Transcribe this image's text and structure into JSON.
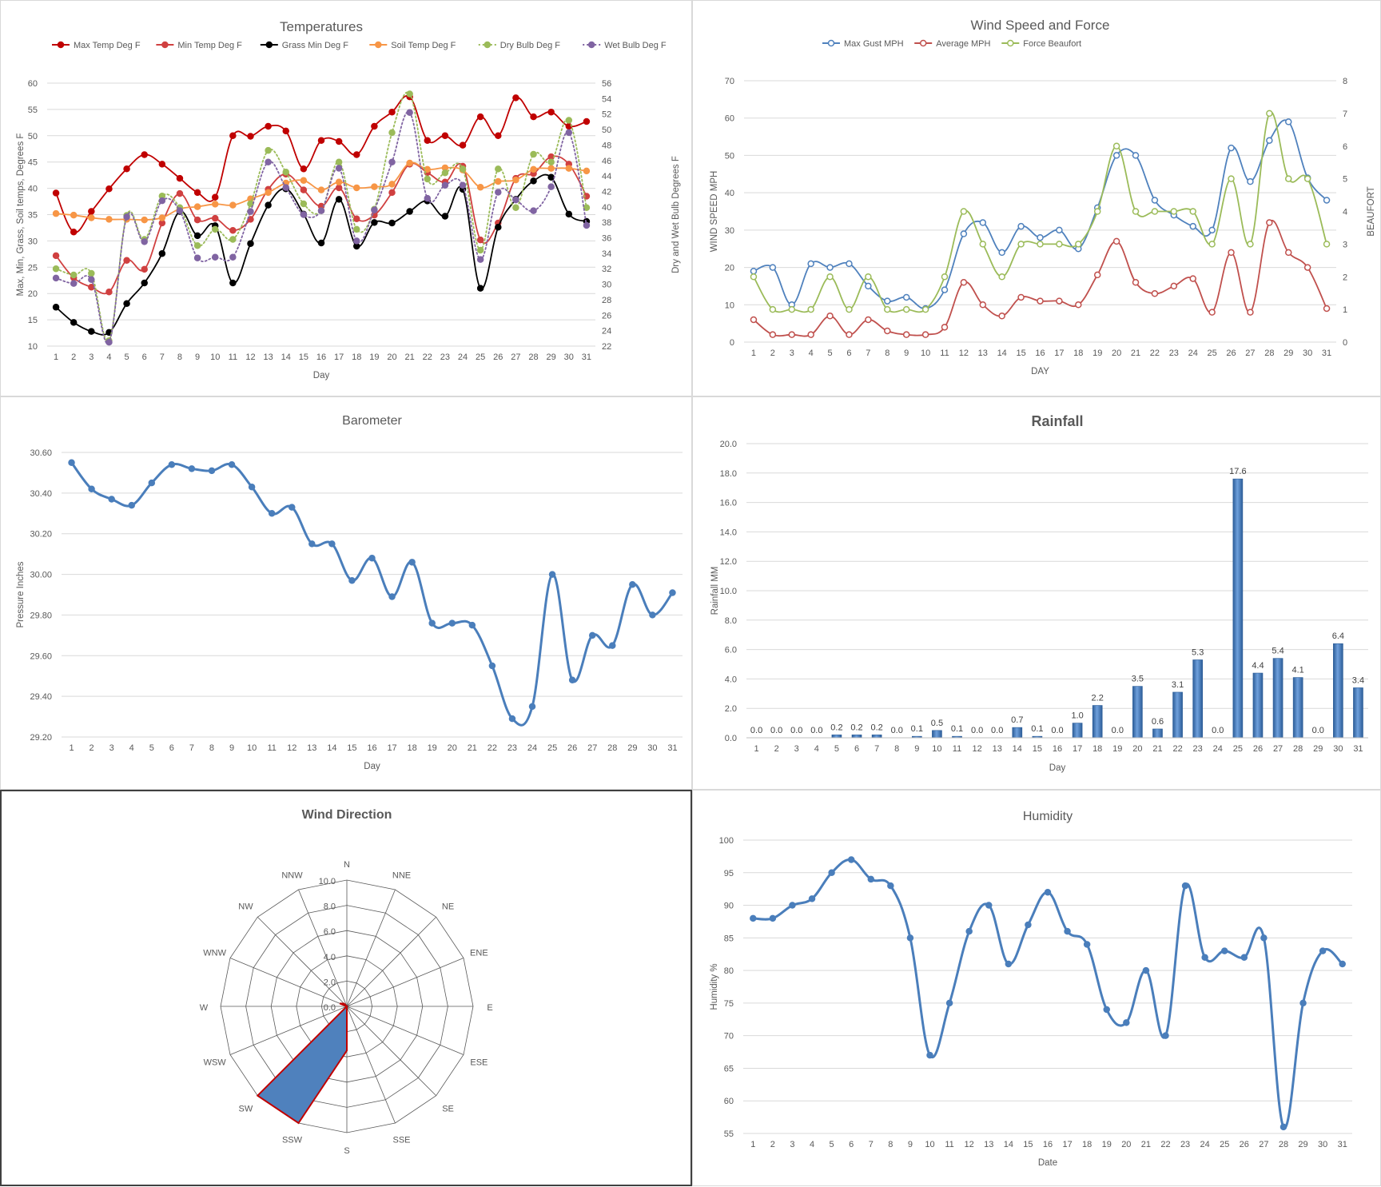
{
  "chart_data": [
    {
      "id": "temp",
      "type": "line",
      "title": "Temperatures",
      "xlabel": "Day",
      "ylabel": "Max, Min, Grass, Soil temps, Degrees F",
      "y2label": "Dry and Wet Bulb Degrees F",
      "ylim": [
        10,
        60
      ],
      "y_ticks": [
        10,
        15,
        20,
        25,
        30,
        35,
        40,
        45,
        50,
        55,
        60
      ],
      "y2lim": [
        22,
        56
      ],
      "y2_ticks": [
        22,
        24,
        26,
        28,
        30,
        32,
        34,
        36,
        38,
        40,
        42,
        44,
        46,
        48,
        50,
        52,
        54,
        56
      ],
      "x": [
        1,
        2,
        3,
        4,
        5,
        6,
        7,
        8,
        9,
        10,
        11,
        12,
        13,
        14,
        15,
        16,
        17,
        18,
        19,
        20,
        21,
        22,
        23,
        24,
        25,
        26,
        27,
        28,
        29,
        30,
        31
      ],
      "legend": "top",
      "series": [
        {
          "name": "Max Temp Deg F",
          "color": "#c00000",
          "axis": "left",
          "dash": false,
          "values": [
            39.1,
            31.7,
            35.6,
            39.9,
            43.7,
            46.4,
            44.6,
            41.9,
            39.2,
            38.3,
            50.0,
            49.9,
            51.8,
            50.9,
            43.7,
            49.1,
            48.9,
            46.4,
            51.8,
            54.5,
            57.4,
            49.1,
            50.0,
            48.2,
            53.6,
            50.0,
            57.2,
            53.6,
            54.5,
            51.8,
            52.7
          ]
        },
        {
          "name": "Min Temp Deg F",
          "color": "#d04040",
          "axis": "left",
          "dash": false,
          "values": [
            27.2,
            23.0,
            21.2,
            20.3,
            26.3,
            24.6,
            33.4,
            39.0,
            34.0,
            34.3,
            32.0,
            34.1,
            39.8,
            42.7,
            39.7,
            36.6,
            40.1,
            34.2,
            34.9,
            39.2,
            44.6,
            43.0,
            41.2,
            44.2,
            30.2,
            33.4,
            41.9,
            42.8,
            46.0,
            44.6,
            38.5
          ]
        },
        {
          "name": "Grass Min Deg F",
          "color": "#000000",
          "axis": "left",
          "dash": false,
          "values": [
            17.4,
            14.5,
            12.8,
            12.6,
            18.1,
            22.0,
            27.6,
            35.6,
            31.0,
            32.9,
            22.0,
            29.5,
            36.8,
            39.9,
            35.1,
            29.6,
            37.9,
            29.0,
            33.5,
            33.4,
            35.6,
            37.6,
            34.7,
            39.8,
            21.0,
            32.6,
            37.9,
            41.4,
            42.1,
            35.1,
            33.7
          ]
        },
        {
          "name": "Soil Temp Deg F",
          "color": "#f79646",
          "axis": "left",
          "dash": false,
          "values": [
            35.2,
            34.9,
            34.4,
            34.1,
            34.1,
            34.0,
            34.4,
            36.1,
            36.5,
            37.0,
            36.8,
            38.0,
            39.2,
            41.0,
            41.5,
            39.7,
            41.2,
            40.1,
            40.3,
            40.8,
            44.8,
            43.6,
            43.9,
            43.5,
            40.2,
            41.3,
            41.6,
            43.6,
            43.8,
            43.8,
            43.3
          ]
        },
        {
          "name": "Dry Bulb Deg F",
          "color": "#9bbb59",
          "axis": "right",
          "dash": true,
          "values": [
            32.0,
            31.2,
            31.4,
            22.7,
            38.9,
            35.8,
            41.4,
            39.9,
            35.0,
            37.1,
            35.8,
            40.4,
            47.3,
            44.5,
            40.4,
            39.5,
            45.8,
            37.1,
            39.7,
            49.6,
            54.6,
            43.6,
            44.4,
            44.9,
            34.4,
            44.9,
            39.9,
            46.8,
            45.8,
            51.2,
            39.9
          ]
        },
        {
          "name": "Wet Bulb Deg F",
          "color": "#8064a2",
          "axis": "right",
          "dash": true,
          "values": [
            30.8,
            30.1,
            30.6,
            22.5,
            38.7,
            35.5,
            40.8,
            39.5,
            33.4,
            33.5,
            33.5,
            39.4,
            45.8,
            42.5,
            39.0,
            39.5,
            45.0,
            35.6,
            39.6,
            45.8,
            52.2,
            41.1,
            42.8,
            42.8,
            33.2,
            41.9,
            40.9,
            39.5,
            42.6,
            49.6,
            37.6
          ]
        }
      ]
    },
    {
      "id": "wind",
      "type": "line",
      "title": "Wind Speed and Force",
      "xlabel": "DAY",
      "ylabel": "WIND SPEED MPH",
      "y2label": "BEAUFORT",
      "ylim": [
        0,
        70
      ],
      "y_ticks": [
        0,
        10,
        20,
        30,
        40,
        50,
        60,
        70
      ],
      "y2lim": [
        0,
        8
      ],
      "y2_ticks": [
        0,
        1,
        2,
        3,
        4,
        5,
        6,
        7,
        8
      ],
      "x": [
        1,
        2,
        3,
        4,
        5,
        6,
        7,
        8,
        9,
        10,
        11,
        12,
        13,
        14,
        15,
        16,
        17,
        18,
        19,
        20,
        21,
        22,
        23,
        24,
        25,
        26,
        27,
        28,
        29,
        30,
        31
      ],
      "legend": "top",
      "series": [
        {
          "name": "Max Gust MPH",
          "color": "#4f81bd",
          "axis": "left",
          "values": [
            19,
            20,
            10,
            21,
            20,
            21,
            15,
            11,
            12,
            9,
            14,
            29,
            32,
            24,
            31,
            28,
            30,
            25,
            36,
            50,
            50,
            38,
            34,
            31,
            30,
            52,
            43,
            54,
            59,
            44,
            38
          ]
        },
        {
          "name": "Average MPH",
          "color": "#c0504d",
          "axis": "left",
          "values": [
            6,
            2,
            2,
            2,
            7,
            2,
            6,
            3,
            2,
            2,
            4,
            16,
            10,
            7,
            12,
            11,
            11,
            10,
            18,
            27,
            16,
            13,
            15,
            17,
            8,
            24,
            8,
            32,
            24,
            20,
            9
          ]
        },
        {
          "name": "Force Beaufort",
          "color": "#9bbb59",
          "axis": "right",
          "values": [
            2,
            1,
            1,
            1,
            2,
            1,
            2,
            1,
            1,
            1,
            2,
            4,
            3,
            2,
            3,
            3,
            3,
            3,
            4,
            6,
            4,
            4,
            4,
            4,
            3,
            5,
            3,
            7,
            5,
            5,
            3
          ]
        }
      ]
    },
    {
      "id": "baro",
      "type": "line",
      "title": "Barometer",
      "xlabel": "Day",
      "ylabel": "Pressure Inches",
      "ylim": [
        29.2,
        30.6
      ],
      "y_ticks": [
        "29.20",
        "29.40",
        "29.60",
        "29.80",
        "30.00",
        "30.20",
        "30.40",
        "30.60"
      ],
      "x": [
        1,
        2,
        3,
        4,
        5,
        6,
        7,
        8,
        9,
        10,
        11,
        12,
        13,
        14,
        15,
        16,
        17,
        18,
        19,
        20,
        21,
        22,
        23,
        24,
        25,
        26,
        27,
        28,
        29,
        30,
        31
      ],
      "series": [
        {
          "color": "#4a7ebb",
          "values": [
            30.55,
            30.42,
            30.37,
            30.34,
            30.45,
            30.54,
            30.52,
            30.51,
            30.54,
            30.43,
            30.3,
            30.33,
            30.15,
            30.15,
            29.97,
            30.08,
            29.89,
            30.06,
            29.76,
            29.76,
            29.75,
            29.55,
            29.29,
            29.35,
            30.0,
            29.48,
            29.7,
            29.65,
            29.95,
            29.8,
            29.91
          ]
        }
      ]
    },
    {
      "id": "rain",
      "type": "bar",
      "title": "Rainfall",
      "xlabel": "Day",
      "ylabel": "Rainfall MM",
      "ylim": [
        0,
        20
      ],
      "y_ticks": [
        "0.0",
        "2.0",
        "4.0",
        "6.0",
        "8.0",
        "10.0",
        "12.0",
        "14.0",
        "16.0",
        "18.0",
        "20.0"
      ],
      "categories": [
        1,
        2,
        3,
        4,
        5,
        6,
        7,
        8,
        9,
        10,
        11,
        12,
        13,
        14,
        15,
        16,
        17,
        18,
        19,
        20,
        21,
        22,
        23,
        24,
        25,
        26,
        27,
        28,
        29,
        30,
        31
      ],
      "values": [
        0.0,
        0.0,
        0.0,
        0.0,
        0.2,
        0.2,
        0.2,
        0.0,
        0.1,
        0.5,
        0.1,
        0.0,
        0.0,
        0.7,
        0.1,
        0.0,
        1.0,
        2.2,
        0.0,
        3.5,
        0.6,
        3.1,
        5.3,
        0.0,
        17.6,
        4.4,
        5.4,
        4.1,
        0.0,
        6.4,
        3.4
      ],
      "data_labels": [
        "0.0",
        "0.0",
        "0.0",
        "0.0",
        "0.2",
        "0.2",
        "0.2",
        "0.0",
        "0.1",
        "0.5",
        "0.1",
        "0.0",
        "0.0",
        "0.7",
        "0.1",
        "0.0",
        "1.0",
        "2.2",
        "0.0",
        "3.5",
        "0.6",
        "3.1",
        "5.3",
        "0.0",
        "17.6",
        "4.4",
        "5.4",
        "4.1",
        "0.0",
        "6.4",
        "3.4"
      ],
      "color": "#4f81bd"
    },
    {
      "id": "dir",
      "type": "radar",
      "title": "Wind Direction",
      "directions": [
        "N",
        "NNE",
        "NE",
        "ENE",
        "E",
        "ESE",
        "SE",
        "SSE",
        "S",
        "SSW",
        "SW",
        "WSW",
        "W",
        "WNW",
        "NW",
        "NNW"
      ],
      "values": [
        0,
        0,
        0,
        0,
        0,
        0,
        0,
        0,
        3.5,
        10.0,
        10.0,
        0,
        0,
        0.6,
        0.3,
        0
      ],
      "r_ticks": [
        "0.0",
        "2.0",
        "4.0",
        "6.0",
        "8.0",
        "10.0"
      ],
      "rlim": [
        0,
        10
      ],
      "fill": "#4f81bd",
      "stroke": "#c00000"
    },
    {
      "id": "hum",
      "type": "line",
      "title": "Humidity",
      "xlabel": "Date",
      "ylabel": "Humidity %",
      "ylim": [
        55,
        100
      ],
      "y_ticks": [
        55,
        60,
        65,
        70,
        75,
        80,
        85,
        90,
        95,
        100
      ],
      "x": [
        1,
        2,
        3,
        4,
        5,
        6,
        7,
        8,
        9,
        10,
        11,
        12,
        13,
        14,
        15,
        16,
        17,
        18,
        19,
        20,
        21,
        22,
        23,
        24,
        25,
        26,
        27,
        28,
        29,
        30,
        31
      ],
      "series": [
        {
          "color": "#4a7ebb",
          "values": [
            88,
            88,
            90,
            91,
            95,
            97,
            94,
            93,
            85,
            67,
            75,
            86,
            90,
            81,
            87,
            92,
            86,
            84,
            74,
            72,
            80,
            70,
            93,
            82,
            83,
            82,
            85,
            56,
            75,
            83,
            81
          ]
        }
      ]
    }
  ]
}
